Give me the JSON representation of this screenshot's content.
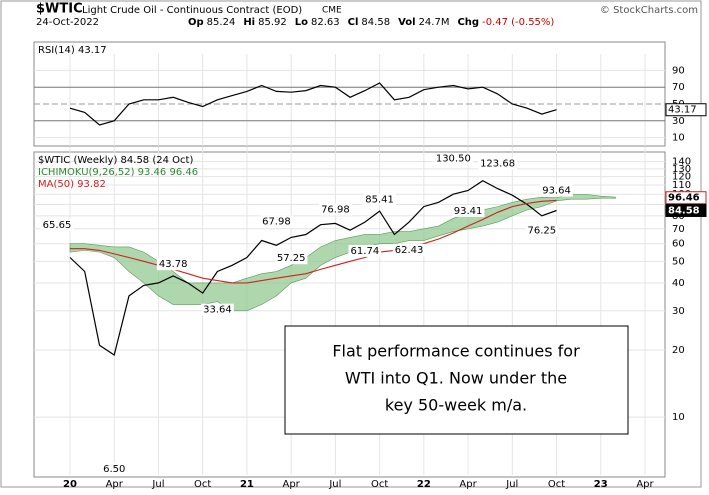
{
  "header": {
    "symbol": "$WTIC",
    "name": "Light Crude Oil - Continuous Contract (EOD)",
    "exchange": "CME",
    "source": "© StockCharts.com",
    "date": "24-Oct-2022",
    "stats": [
      [
        "Op",
        "85.24"
      ],
      [
        "Hi",
        "85.92"
      ],
      [
        "Lo",
        "82.63"
      ],
      [
        "Cl",
        "84.58"
      ],
      [
        "Vol",
        "24.7M"
      ],
      [
        "Chg",
        "-0.47 (-0.55%)"
      ]
    ]
  },
  "annotation": [
    "Flat performance continues for",
    "WTI into Q1.  Now under the",
    "key 50-week m/a."
  ],
  "chart_data": [
    {
      "type": "line",
      "legend": "RSI(14) 43.17",
      "ylim": [
        0,
        100
      ],
      "yticks": [
        10,
        30,
        50,
        70,
        90
      ],
      "last_tag": 43.17,
      "series": [
        {
          "name": "RSI(14)",
          "color": "#000000",
          "values": [
            45,
            40,
            25,
            30,
            50,
            55,
            55,
            58,
            52,
            47,
            55,
            60,
            65,
            72,
            65,
            64,
            66,
            72,
            70,
            58,
            66,
            75,
            55,
            58,
            67,
            70,
            72,
            68,
            70,
            62,
            50,
            45,
            38,
            43.17,
            null,
            null,
            null,
            null,
            null,
            null
          ]
        }
      ]
    },
    {
      "type": "line",
      "log": true,
      "ylim": [
        5.5,
        150
      ],
      "yticks": [
        10,
        20,
        30,
        40,
        50,
        60,
        70,
        80,
        90,
        100,
        110,
        120,
        130,
        140
      ],
      "grid": true,
      "categories": [
        "20",
        null,
        null,
        "Apr",
        null,
        null,
        "Jul",
        null,
        null,
        "Oct",
        null,
        null,
        "21",
        null,
        null,
        "Apr",
        null,
        null,
        "Jul",
        null,
        null,
        "Oct",
        null,
        null,
        "22",
        null,
        null,
        "Apr",
        null,
        null,
        "Jul",
        null,
        null,
        "Oct",
        null,
        null,
        "23",
        null,
        null,
        "Apr"
      ],
      "series": [
        {
          "name": "$WTIC (Weekly) 84.58 (24 Oct)",
          "color": "#000000",
          "values": [
            52,
            45,
            21,
            19,
            35,
            39,
            40,
            43,
            40,
            36,
            45,
            48,
            52,
            62,
            59,
            64,
            66,
            73,
            74,
            69,
            75,
            84,
            66,
            75,
            88,
            92,
            100,
            104,
            115,
            106,
            99,
            90,
            80,
            84.58,
            null,
            null,
            null,
            null,
            null,
            null
          ]
        },
        {
          "name": "MA(50) 93.82",
          "color": "#d02020",
          "values": [
            57,
            57,
            56,
            54,
            52,
            50,
            48,
            46,
            44,
            42,
            41,
            40,
            40,
            41,
            42,
            43,
            44,
            46,
            48,
            50,
            52,
            55,
            56,
            58,
            60,
            63,
            67,
            72,
            77,
            83,
            88,
            91,
            93,
            93.82,
            null,
            null,
            null,
            null,
            null,
            null
          ]
        }
      ],
      "cloud": {
        "name": "ICHIMOKU(9,26,52) 93.46 96.46",
        "color": "#8cc68c",
        "lower": [
          55,
          56,
          55,
          52,
          45,
          40,
          35,
          32,
          32,
          32,
          33,
          30,
          30,
          32,
          35,
          40,
          42,
          48,
          52,
          55,
          58,
          60,
          60,
          62,
          62,
          65,
          68,
          70,
          72,
          75,
          80,
          85,
          88,
          93.46,
          95,
          95,
          96,
          96,
          null,
          null
        ],
        "upper": [
          60,
          60,
          59,
          58,
          58,
          55,
          50,
          45,
          40,
          40,
          40,
          40,
          42,
          44,
          45,
          48,
          52,
          58,
          62,
          64,
          66,
          66,
          68,
          68,
          70,
          72,
          78,
          82,
          85,
          88,
          92,
          95,
          97,
          96.46,
          100,
          100,
          98,
          97,
          null,
          null
        ]
      },
      "price_labels": [
        {
          "value": 65.65,
          "label": "65.65"
        },
        {
          "value": 43.78,
          "label": "43.78"
        },
        {
          "value": 33.64,
          "label": "33.64"
        },
        {
          "value": 67.98,
          "label": "67.98"
        },
        {
          "value": 57.25,
          "label": "57.25"
        },
        {
          "value": 76.98,
          "label": "76.98"
        },
        {
          "value": 61.74,
          "label": "61.74"
        },
        {
          "value": 85.41,
          "label": "85.41"
        },
        {
          "value": 62.43,
          "label": "62.43"
        },
        {
          "value": 130.5,
          "label": "130.50"
        },
        {
          "value": 93.41,
          "label": "93.41"
        },
        {
          "value": 123.68,
          "label": "123.68"
        },
        {
          "value": 93.64,
          "label": "93.64"
        },
        {
          "value": 76.25,
          "label": "76.25"
        },
        {
          "value": 6.5,
          "label": "6.50"
        }
      ],
      "last_tags": [
        96.46,
        84.58
      ]
    }
  ]
}
